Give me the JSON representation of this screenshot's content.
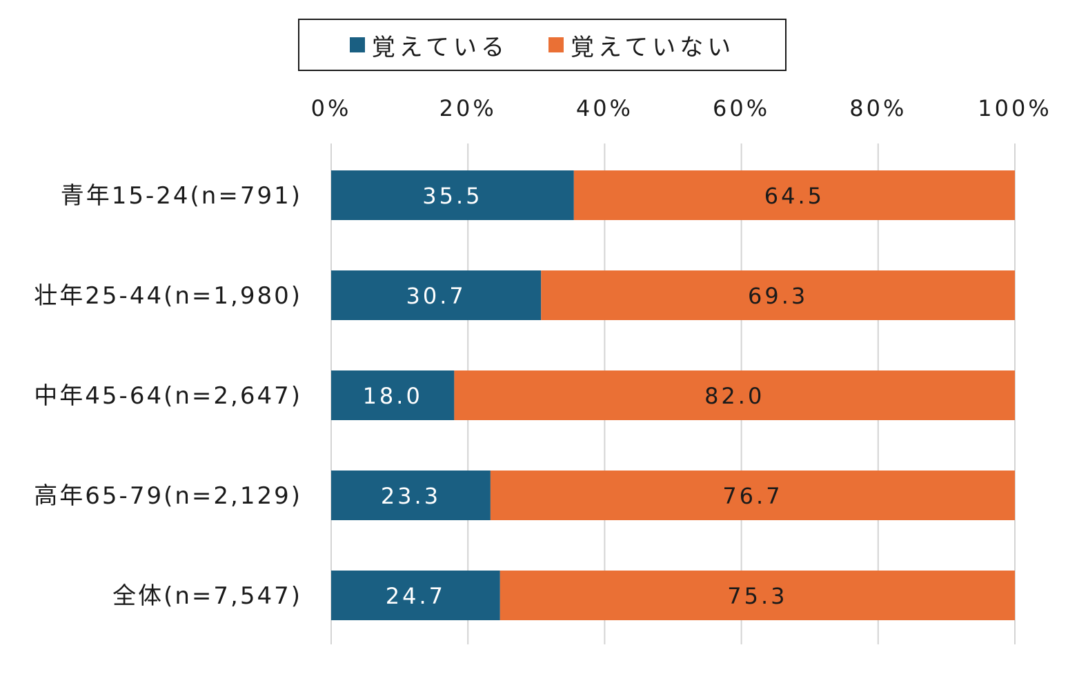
{
  "chart_data": {
    "type": "bar",
    "orientation": "horizontal",
    "stacked": true,
    "categories": [
      "青年15-24(n=791)",
      "壮年25-44(n=1,980)",
      "中年45-64(n=2,647)",
      "高年65-79(n=2,129)",
      "全体(n=7,547)"
    ],
    "series": [
      {
        "name": "覚えている",
        "color": "#1a5f82",
        "label_color": "#ffffff",
        "values": [
          35.5,
          30.7,
          18.0,
          23.3,
          24.7
        ]
      },
      {
        "name": "覚えていない",
        "color": "#ea7035",
        "label_color": "#1a1a1a",
        "values": [
          64.5,
          69.3,
          82.0,
          76.7,
          75.3
        ]
      }
    ],
    "xlim": [
      0,
      100
    ],
    "xticks": [
      "0%",
      "20%",
      "40%",
      "60%",
      "80%",
      "100%"
    ],
    "grid": true,
    "legend_position": "top"
  }
}
